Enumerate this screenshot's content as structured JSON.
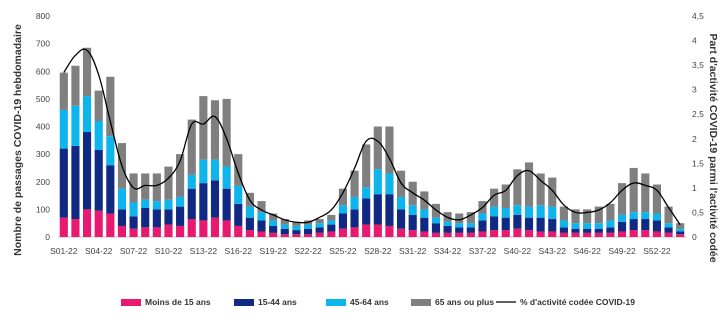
{
  "chart_data": {
    "type": "bar",
    "stacked": true,
    "categories": [
      "S01-22",
      "S02-22",
      "S03-22",
      "S04-22",
      "S05-22",
      "S06-22",
      "S07-22",
      "S08-22",
      "S09-22",
      "S10-22",
      "S11-22",
      "S12-22",
      "S13-22",
      "S14-22",
      "S15-22",
      "S16-22",
      "S17-22",
      "S18-22",
      "S19-22",
      "S20-22",
      "S21-22",
      "S22-22",
      "S23-22",
      "S24-22",
      "S25-22",
      "S26-22",
      "S27-22",
      "S28-22",
      "S29-22",
      "S30-22",
      "S31-22",
      "S32-22",
      "S33-22",
      "S34-22",
      "S35-22",
      "S36-22",
      "S37-22",
      "S38-22",
      "S39-22",
      "S40-22",
      "S41-22",
      "S42-22",
      "S43-22",
      "S44-22",
      "S45-22",
      "S46-22",
      "S47-22",
      "S48-22",
      "S49-22",
      "S50-22",
      "S51-22",
      "S52-22",
      "S01-23",
      "S02-23"
    ],
    "tick_labels": [
      "S01-22",
      "S04-22",
      "S07-22",
      "S10-22",
      "S13-22",
      "S16-22",
      "S19-22",
      "S22-22",
      "S25-22",
      "S28-22",
      "S31-22",
      "S34-22",
      "S37-22",
      "S40-22",
      "S43-22",
      "S46-22",
      "S49-22",
      "S52-22"
    ],
    "series": [
      {
        "name": "Moins de 15 ans",
        "color": "#e8196e",
        "values": [
          70,
          65,
          100,
          95,
          85,
          40,
          30,
          35,
          35,
          45,
          40,
          65,
          60,
          70,
          60,
          40,
          25,
          20,
          15,
          10,
          10,
          10,
          15,
          20,
          30,
          35,
          45,
          45,
          40,
          30,
          25,
          20,
          15,
          15,
          15,
          15,
          20,
          25,
          25,
          30,
          25,
          20,
          20,
          15,
          15,
          15,
          15,
          15,
          20,
          25,
          25,
          20,
          15,
          10
        ]
      },
      {
        "name": "15-44 ans",
        "color": "#102a83",
        "values": [
          250,
          265,
          280,
          220,
          175,
          60,
          45,
          70,
          65,
          55,
          70,
          110,
          135,
          135,
          115,
          80,
          45,
          40,
          25,
          20,
          15,
          20,
          20,
          25,
          55,
          65,
          95,
          110,
          115,
          70,
          55,
          50,
          35,
          25,
          20,
          20,
          40,
          50,
          45,
          50,
          45,
          50,
          45,
          20,
          15,
          15,
          15,
          20,
          35,
          40,
          40,
          40,
          20,
          10
        ]
      },
      {
        "name": "45-64 ans",
        "color": "#0eb4ec",
        "values": [
          140,
          145,
          130,
          105,
          105,
          75,
          50,
          30,
          30,
          35,
          35,
          50,
          85,
          75,
          80,
          65,
          40,
          30,
          20,
          15,
          15,
          15,
          15,
          15,
          30,
          45,
          40,
          90,
          75,
          45,
          35,
          30,
          20,
          15,
          15,
          15,
          25,
          35,
          35,
          35,
          40,
          45,
          45,
          25,
          20,
          20,
          20,
          25,
          25,
          25,
          25,
          25,
          15,
          10
        ]
      },
      {
        "name": "65 ans ou plus",
        "color": "#7f7f7f",
        "values": [
          135,
          145,
          175,
          110,
          215,
          165,
          105,
          95,
          100,
          120,
          155,
          200,
          230,
          215,
          245,
          115,
          50,
          40,
          25,
          20,
          15,
          15,
          15,
          20,
          60,
          95,
          155,
          155,
          170,
          95,
          85,
          65,
          50,
          35,
          35,
          40,
          45,
          65,
          85,
          130,
          160,
          115,
          105,
          50,
          50,
          50,
          60,
          60,
          115,
          160,
          140,
          105,
          60,
          20
        ]
      }
    ],
    "line": {
      "name": "% d'activité codée COVID-19",
      "color": "#000000",
      "axis": "right",
      "values": [
        3.35,
        3.7,
        3.8,
        3.3,
        2.35,
        1.45,
        1.0,
        1.05,
        1.05,
        1.2,
        1.55,
        2.3,
        2.3,
        2.45,
        2.0,
        1.3,
        0.75,
        0.55,
        0.45,
        0.35,
        0.3,
        0.3,
        0.4,
        0.55,
        0.9,
        1.4,
        1.95,
        1.95,
        1.6,
        1.1,
        0.9,
        0.75,
        0.55,
        0.4,
        0.35,
        0.45,
        0.6,
        0.85,
        0.95,
        1.25,
        1.35,
        1.15,
        0.95,
        0.65,
        0.5,
        0.5,
        0.55,
        0.7,
        0.95,
        1.1,
        1.05,
        0.95,
        0.6,
        0.25
      ]
    },
    "ylabel": "Nombre de passages COVID-19 hebdomadaire",
    "y2label": "Part d'activité COVID-19 parmi l'activité codée",
    "ylim": [
      0,
      800
    ],
    "y2lim": [
      0,
      4.5
    ],
    "yticks": [
      "0",
      "100",
      "200",
      "300",
      "400",
      "500",
      "600",
      "700",
      "800"
    ],
    "y2ticks": [
      "0",
      "0,5",
      "1",
      "1,5",
      "2",
      "2,5",
      "3",
      "3,5",
      "4",
      "4,5"
    ],
    "legend_position": "bottom",
    "grid": false
  }
}
